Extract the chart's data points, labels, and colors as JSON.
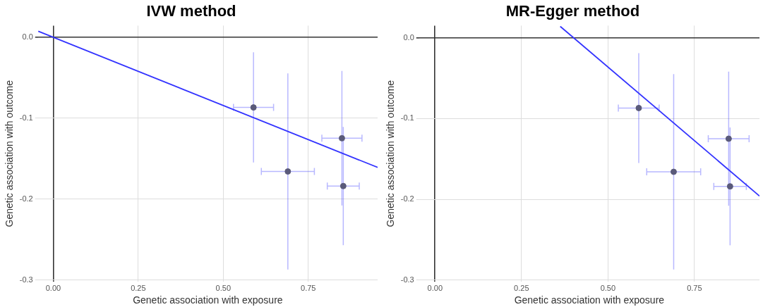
{
  "chart_data": [
    {
      "type": "scatter",
      "title": "IVW method",
      "xlabel": "Genetic association with exposure",
      "ylabel": "Genetic association with outcome",
      "xlim": [
        -0.045,
        0.954
      ],
      "ylim": [
        -0.302,
        0.014
      ],
      "xticks": [
        {
          "value": 0,
          "label": "0.00"
        },
        {
          "value": 0.25,
          "label": "0.25"
        },
        {
          "value": 0.5,
          "label": "0.50"
        },
        {
          "value": 0.75,
          "label": "0.75"
        }
      ],
      "yticks": [
        {
          "value": 0,
          "label": "0.0"
        },
        {
          "value": -0.1,
          "label": "-0.1"
        },
        {
          "value": -0.2,
          "label": "-0.2"
        },
        {
          "value": -0.3,
          "label": "-0.3"
        }
      ],
      "grid": true,
      "series": [
        {
          "type": "scatter",
          "marker": "circle",
          "color": "#5a5a7a",
          "x": [
            0.589,
            0.69,
            0.849,
            0.853
          ],
          "values": [
            -0.087,
            -0.166,
            -0.125,
            -0.184
          ],
          "errors": [
            0.068,
            0.121,
            0.083,
            0.073
          ],
          "xerrors": [
            0.059,
            0.078,
            0.059,
            0.047
          ]
        },
        {
          "type": "line",
          "color": "#3333ff",
          "x": [
            -0.044,
            0.954
          ],
          "values": [
            0.007,
            -0.161
          ]
        }
      ]
    },
    {
      "type": "scatter",
      "title": "MR-Egger method",
      "xlabel": "Genetic association with exposure",
      "ylabel": "Genetic association with outcome",
      "xlim": [
        -0.046,
        0.938
      ],
      "ylim": [
        -0.302,
        0.015
      ],
      "xticks": [
        {
          "value": 0,
          "label": "0.00"
        },
        {
          "value": 0.25,
          "label": "0.25"
        },
        {
          "value": 0.5,
          "label": "0.50"
        },
        {
          "value": 0.75,
          "label": "0.75"
        }
      ],
      "yticks": [
        {
          "value": 0,
          "label": "0.0"
        },
        {
          "value": -0.1,
          "label": "-0.1"
        },
        {
          "value": -0.2,
          "label": "-0.2"
        },
        {
          "value": -0.3,
          "label": "-0.3"
        }
      ],
      "grid": true,
      "series": [
        {
          "type": "scatter",
          "marker": "circle",
          "color": "#5a5a7a",
          "x": [
            0.589,
            0.69,
            0.849,
            0.853
          ],
          "values": [
            -0.087,
            -0.166,
            -0.125,
            -0.184
          ],
          "errors": [
            0.068,
            0.121,
            0.083,
            0.073
          ],
          "xerrors": [
            0.059,
            0.078,
            0.059,
            0.047
          ]
        },
        {
          "type": "line",
          "color": "#3333ff",
          "x": [
            0.362,
            0.938
          ],
          "values": [
            0.014,
            -0.196
          ]
        }
      ]
    }
  ]
}
